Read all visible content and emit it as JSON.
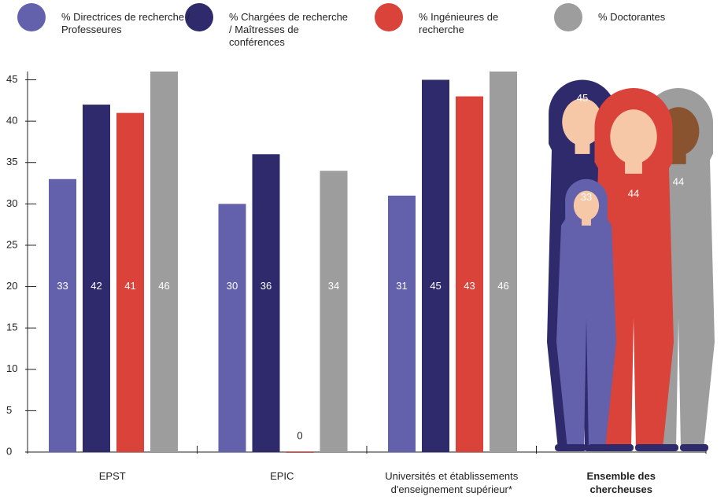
{
  "chart_data": {
    "type": "bar",
    "categories": [
      "EPST",
      "EPIC",
      "Universités et établissements d'enseignement supérieur*",
      "Ensemble des chercheuses"
    ],
    "series": [
      {
        "name": "% Directrices de recherche / Professeures",
        "color": "#6461ac",
        "values": [
          33,
          30,
          31,
          33
        ]
      },
      {
        "name": "% Chargées de recherche / Maîtresses de conférences",
        "color": "#2e2a6c",
        "values": [
          42,
          36,
          45,
          45
        ]
      },
      {
        "name": "% Ingénieures de recherche",
        "color": "#da4339",
        "values": [
          41,
          0,
          43,
          44
        ]
      },
      {
        "name": "% Doctorantes",
        "color": "#9d9d9d",
        "values": [
          46,
          34,
          46,
          44
        ]
      }
    ],
    "ylim": [
      0,
      46
    ],
    "yticks": [
      0,
      5,
      10,
      15,
      20,
      25,
      30,
      35,
      40,
      45
    ]
  }
}
